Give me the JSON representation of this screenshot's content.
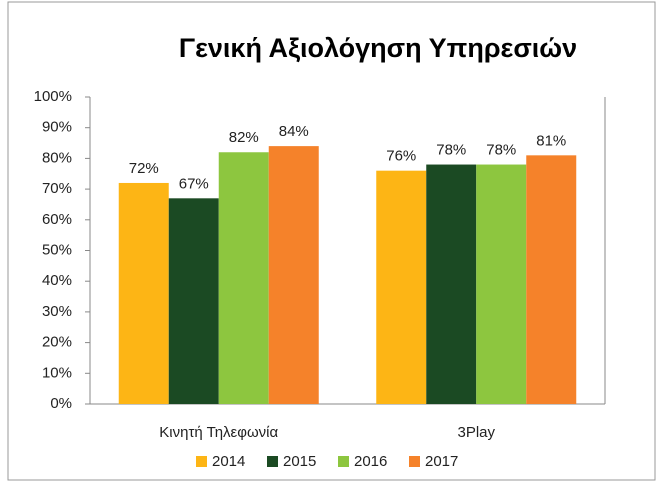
{
  "chart_data": {
    "type": "bar",
    "title": "Γενική Αξιολόγηση Υπηρεσιών",
    "categories": [
      "Κινητή Τηλεφωνία",
      "3Play"
    ],
    "series": [
      {
        "name": "2014",
        "color": "#fdb515",
        "values": [
          72,
          76
        ],
        "value_labels": [
          "72%",
          "76%"
        ]
      },
      {
        "name": "2015",
        "color": "#1b4a23",
        "values": [
          67,
          78
        ],
        "value_labels": [
          "67%",
          "78%"
        ]
      },
      {
        "name": "2016",
        "color": "#8dc63f",
        "values": [
          82,
          78
        ],
        "value_labels": [
          "82%",
          "78%"
        ]
      },
      {
        "name": "2017",
        "color": "#f5822a",
        "values": [
          84,
          81
        ],
        "value_labels": [
          "84%",
          "81%"
        ]
      }
    ],
    "ylim": [
      0,
      100
    ],
    "yticks": [
      {
        "value": 0,
        "label": "0%"
      },
      {
        "value": 10,
        "label": "10%"
      },
      {
        "value": 20,
        "label": "20%"
      },
      {
        "value": 30,
        "label": "30%"
      },
      {
        "value": 40,
        "label": "40%"
      },
      {
        "value": 50,
        "label": "50%"
      },
      {
        "value": 60,
        "label": "60%"
      },
      {
        "value": 70,
        "label": "70%"
      },
      {
        "value": 80,
        "label": "80%"
      },
      {
        "value": 90,
        "label": "90%"
      },
      {
        "value": 100,
        "label": "100%"
      }
    ],
    "grid": false,
    "legend": "bottom"
  }
}
